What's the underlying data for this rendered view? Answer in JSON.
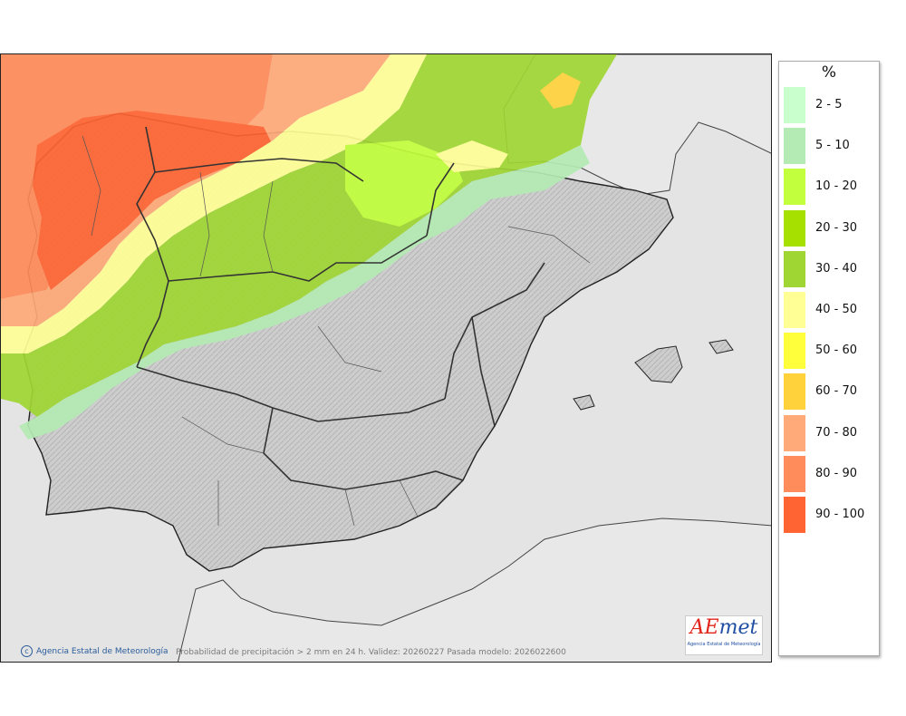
{
  "map": {
    "credit": "Agencia Estatal de Meteorología",
    "caption": "Probabilidad de precipitación > 2 mm en 24 h. Validez: 20260227 Pasada modelo: 2026022600",
    "logo": {
      "text_a": "AE",
      "text_b": "met",
      "subtitle": "Agencia Estatal de Meteorología"
    },
    "colors": {
      "sea": "#e4e4e4",
      "land": "#cfcfcf",
      "border": "#333333"
    }
  },
  "legend": {
    "title": "%",
    "items": [
      {
        "label": "2 - 5",
        "color": "#c8ffcc"
      },
      {
        "label": "5 - 10",
        "color": "#b4ebb4"
      },
      {
        "label": "10 - 20",
        "color": "#c2ff3c"
      },
      {
        "label": "20 - 30",
        "color": "#a6e000"
      },
      {
        "label": "30 - 40",
        "color": "#a0d634"
      },
      {
        "label": "40 - 50",
        "color": "#ffff96"
      },
      {
        "label": "50 - 60",
        "color": "#ffff3c"
      },
      {
        "label": "60 - 70",
        "color": "#ffd23c"
      },
      {
        "label": "70 - 80",
        "color": "#ffaa78"
      },
      {
        "label": "80 - 90",
        "color": "#ff8c5a"
      },
      {
        "label": "90 - 100",
        "color": "#ff6432"
      }
    ]
  }
}
